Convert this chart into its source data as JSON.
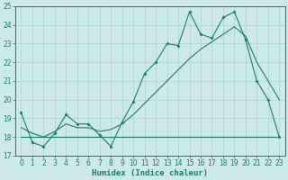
{
  "xlabel": "Humidex (Indice chaleur)",
  "bg_color": "#cce8e8",
  "line_color": "#1a7a6e",
  "grid_color": "#b0d0d0",
  "hours": [
    0,
    1,
    2,
    3,
    4,
    5,
    6,
    7,
    8,
    9,
    10,
    11,
    12,
    13,
    14,
    15,
    16,
    17,
    18,
    19,
    20,
    21,
    22,
    23
  ],
  "series_main": [
    19.3,
    17.7,
    17.5,
    18.2,
    19.2,
    18.7,
    18.7,
    18.1,
    17.5,
    18.8,
    19.9,
    21.4,
    22.0,
    23.0,
    22.9,
    24.7,
    23.5,
    23.3,
    24.4,
    24.7,
    23.2,
    21.0,
    20.0,
    18.0
  ],
  "series_flat": [
    18.0,
    18.0,
    18.0,
    18.0,
    18.0,
    18.0,
    18.0,
    18.0,
    18.0,
    18.0,
    18.0,
    18.0,
    18.0,
    18.0,
    18.0,
    18.0,
    18.0,
    18.0,
    18.0,
    18.0,
    18.0,
    18.0,
    18.0,
    18.0
  ],
  "series_trend": [
    18.5,
    18.2,
    18.0,
    18.3,
    18.7,
    18.5,
    18.5,
    18.3,
    18.4,
    18.7,
    19.2,
    19.8,
    20.4,
    21.0,
    21.6,
    22.2,
    22.7,
    23.1,
    23.5,
    23.9,
    23.4,
    22.0,
    21.0,
    20.0
  ],
  "ylim": [
    17,
    25
  ],
  "xlim_min": -0.5,
  "xlim_max": 23.5,
  "yticks": [
    17,
    18,
    19,
    20,
    21,
    22,
    23,
    24,
    25
  ],
  "xticks": [
    0,
    1,
    2,
    3,
    4,
    5,
    6,
    7,
    8,
    9,
    10,
    11,
    12,
    13,
    14,
    15,
    16,
    17,
    18,
    19,
    20,
    21,
    22,
    23
  ],
  "tick_fontsize": 5.5,
  "xlabel_fontsize": 6.5
}
